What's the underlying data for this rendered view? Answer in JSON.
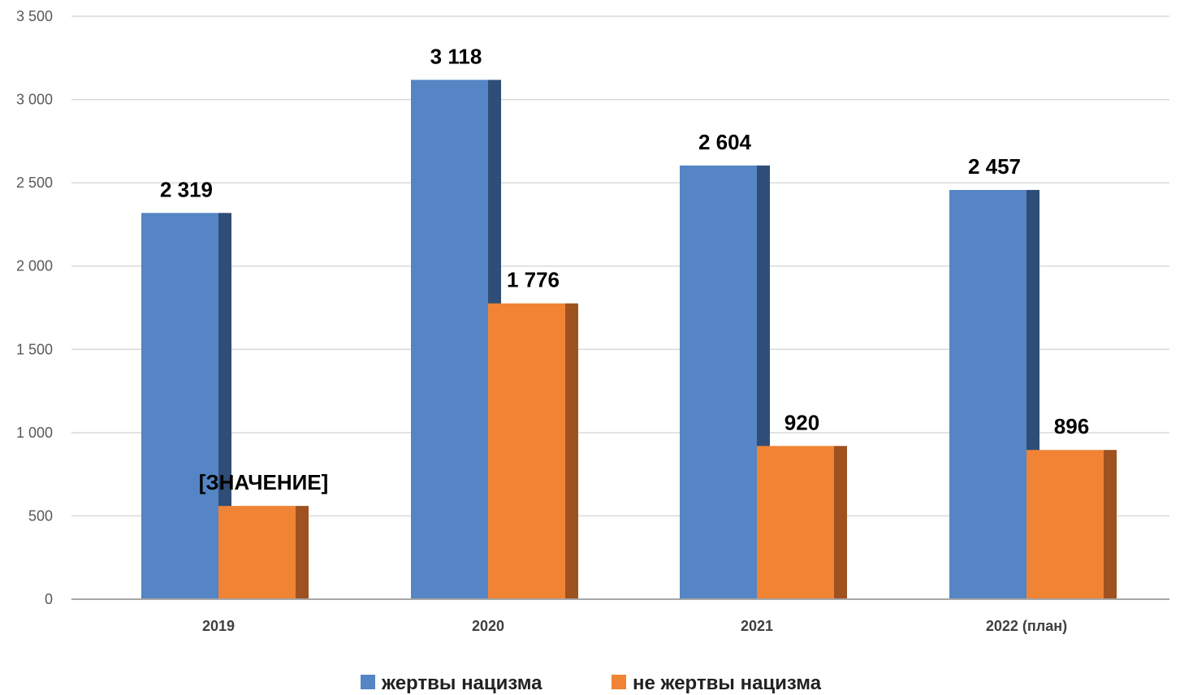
{
  "chart_data": {
    "type": "bar",
    "categories": [
      "2019",
      "2020",
      "2021",
      "2022 (план)"
    ],
    "series": [
      {
        "name": "жертвы нацизма",
        "values": [
          2319,
          3118,
          2604,
          2457
        ],
        "labels": [
          "2 319",
          "3 118",
          "2 604",
          "2 457"
        ],
        "color": "#5585C4",
        "side_color": "#2F4E77"
      },
      {
        "name": "не жертвы нацизма",
        "values": [
          560,
          1776,
          920,
          896
        ],
        "labels": [
          "[ЗНАЧЕНИЕ]",
          "1 776",
          "920",
          "896"
        ],
        "color": "#F08434",
        "side_color": "#9E5220"
      }
    ],
    "ylim": [
      0,
      3500
    ],
    "yticks": [
      0,
      500,
      1000,
      1500,
      2000,
      2500,
      3000,
      3500
    ],
    "ytick_labels": [
      "0",
      "500",
      "1 000",
      "1 500",
      "2 000",
      "2 500",
      "3 000",
      "3 500"
    ],
    "grid": true,
    "legend_position": "bottom",
    "gridline_color": "#D9D9D9",
    "axis_color": "#A6A6A6"
  }
}
